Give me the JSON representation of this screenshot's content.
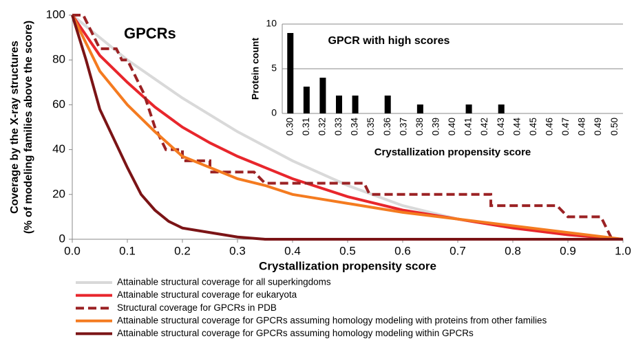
{
  "chart_data": [
    {
      "type": "line",
      "annotation": "GPCRs",
      "xlabel": "Crystallization propensity score",
      "ylabel": [
        "Coverage by the X-ray structures",
        "(% of modeling families above the score)"
      ],
      "xlim": [
        0,
        1
      ],
      "ylim": [
        0,
        100
      ],
      "xticks": [
        {
          "value": 0,
          "label": "0.0"
        },
        0.1,
        0.2,
        0.3,
        0.4,
        0.5,
        0.6,
        0.7,
        0.8,
        0.9,
        {
          "value": 1,
          "label": "1.0"
        }
      ],
      "yticks": [
        0,
        20,
        40,
        60,
        80,
        100
      ],
      "series": [
        {
          "name": "Attainable structural coverage for all superkingdoms",
          "color": "#d9d9d9",
          "style": "solid",
          "x": [
            0,
            0.1,
            0.2,
            0.3,
            0.4,
            0.5,
            0.6,
            0.7,
            0.8,
            0.9,
            1
          ],
          "values": [
            100,
            80,
            63,
            48,
            35,
            24,
            15,
            9,
            5,
            2,
            0
          ]
        },
        {
          "name": "Attainable structural coverage for eukaryota",
          "color": "#e8262c",
          "style": "solid",
          "x": [
            0,
            0.05,
            0.1,
            0.15,
            0.2,
            0.25,
            0.3,
            0.35,
            0.4,
            0.45,
            0.5,
            0.55,
            0.6,
            0.7,
            0.8,
            0.9,
            1
          ],
          "values": [
            100,
            82,
            70,
            59,
            50,
            43,
            37,
            32,
            27,
            23,
            19,
            16,
            13,
            9,
            5,
            2,
            0
          ]
        },
        {
          "name": "Structural coverage for GPCRs in PDB",
          "color": "#9b2224",
          "style": "dashed",
          "x": [
            0,
            0.02,
            0.03,
            0.04,
            0.05,
            0.08,
            0.09,
            0.1,
            0.11,
            0.13,
            0.15,
            0.17,
            0.2,
            0.2,
            0.25,
            0.25,
            0.33,
            0.35,
            0.53,
            0.54,
            0.76,
            0.76,
            0.88,
            0.9,
            0.96,
            0.98
          ],
          "values": [
            100,
            100,
            95,
            90,
            85,
            85,
            80,
            80,
            75,
            65,
            50,
            40,
            40,
            35,
            35,
            30,
            30,
            25,
            25,
            20,
            20,
            15,
            15,
            10,
            10,
            0
          ]
        },
        {
          "name": "Attainable structural coverage for GPCRs assuming homology modeling with proteins from other families",
          "color": "#f47b20",
          "style": "solid",
          "x": [
            0,
            0.05,
            0.1,
            0.15,
            0.2,
            0.25,
            0.3,
            0.35,
            0.4,
            0.45,
            0.5,
            0.55,
            0.6,
            0.7,
            0.8,
            0.9,
            1
          ],
          "values": [
            100,
            75,
            60,
            48,
            37,
            32,
            27,
            24,
            20,
            18,
            16,
            14,
            12,
            9,
            6,
            3,
            0
          ]
        },
        {
          "name": "Attainable structural coverage for GPCRs assuming homology modeling within GPCRs",
          "color": "#7b1416",
          "style": "solid",
          "x": [
            0,
            0.025,
            0.05,
            0.075,
            0.1,
            0.125,
            0.15,
            0.175,
            0.2,
            0.25,
            0.3,
            0.35,
            0.4,
            0.5,
            0.6,
            0.7,
            0.8,
            0.9,
            1
          ],
          "values": [
            100,
            80,
            58,
            45,
            32,
            20,
            13,
            8,
            5,
            3,
            1,
            0,
            0,
            0,
            0,
            0,
            0,
            0,
            0
          ]
        }
      ]
    },
    {
      "type": "bar",
      "title": "GPCR with high scores",
      "xlabel": "Crystallization propensity score",
      "ylabel": "Protein count",
      "color": "#000000",
      "grid": true,
      "ylim": [
        0,
        10
      ],
      "yticks": [
        0,
        5,
        10
      ],
      "categories": [
        "0.30",
        "0.31",
        "0.32",
        "0.33",
        "0.34",
        "0.35",
        "0.36",
        "0.37",
        "0.38",
        "0.39",
        "0.40",
        "0.41",
        "0.42",
        "0.43",
        "0.44",
        "0.45",
        "0.46",
        "0.47",
        "0.48",
        "0.49",
        "0.50"
      ],
      "values": [
        9,
        3,
        4,
        2,
        2,
        0,
        2,
        0,
        1,
        0,
        0,
        1,
        0,
        1,
        0,
        0,
        0,
        0,
        0,
        0,
        0
      ]
    }
  ]
}
